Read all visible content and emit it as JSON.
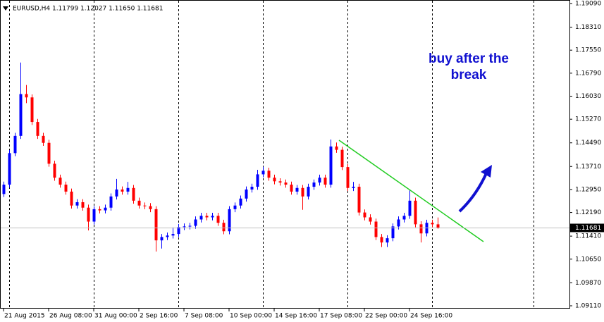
{
  "chart_data": {
    "type": "candlestick",
    "header": "EURUSD,H4  1.11799 1.12027 1.11650 1.11681",
    "annotation": "buy after the break",
    "up_color": "#0000ff",
    "down_color": "#ff0000",
    "price_line": 1.11681,
    "categories": [
      "21 Aug 2015",
      null,
      null,
      null,
      null,
      null,
      null,
      null,
      "26 Aug 08:00",
      null,
      null,
      null,
      null,
      null,
      null,
      null,
      "31 Aug 00:00",
      null,
      null,
      null,
      null,
      null,
      null,
      null,
      "2 Sep 16:00",
      null,
      null,
      null,
      null,
      null,
      null,
      null,
      "7 Sep 08:00",
      null,
      null,
      null,
      null,
      null,
      null,
      null,
      "10 Sep 00:00",
      null,
      null,
      null,
      null,
      null,
      null,
      null,
      "14 Sep 16:00",
      null,
      null,
      null,
      null,
      null,
      null,
      null,
      "17 Sep 08:00",
      null,
      null,
      null,
      null,
      null,
      null,
      null,
      "22 Sep 00:00",
      null,
      null,
      null,
      null,
      null,
      null,
      null,
      "24 Sep 16:00",
      null,
      null,
      null,
      null,
      null
    ],
    "open": [
      1.128,
      1.1311,
      1.1415,
      1.1472,
      1.161,
      1.1599,
      1.1518,
      1.1472,
      1.1449,
      1.138,
      1.1334,
      1.1311,
      1.1288,
      1.1242,
      1.1253,
      1.1235,
      1.1189,
      1.123,
      1.1226,
      1.1235,
      1.1272,
      1.1295,
      1.1288,
      1.13,
      1.1258,
      1.1242,
      1.124,
      1.123,
      1.1127,
      1.1138,
      1.1143,
      1.1148,
      1.1171,
      1.1173,
      1.1175,
      1.1196,
      1.1208,
      1.1203,
      1.1208,
      1.1185,
      1.1157,
      1.123,
      1.1242,
      1.1265,
      1.1295,
      1.1304,
      1.1345,
      1.1357,
      1.1334,
      1.1322,
      1.1318,
      1.1311,
      1.1288,
      1.13,
      1.1272,
      1.1304,
      1.1318,
      1.1334,
      1.1311,
      1.1437,
      1.1426,
      1.1369,
      1.13,
      1.1304,
      1.1219,
      1.1203,
      1.1189,
      1.1138,
      1.112,
      1.1134,
      1.1173,
      1.1196,
      1.1208,
      1.1258,
      1.118,
      1.115,
      1.1185,
      1.11799
    ],
    "high": [
      1.1321,
      1.1425,
      1.1482,
      1.1714,
      1.164,
      1.1609,
      1.1528,
      1.1482,
      1.1459,
      1.139,
      1.1344,
      1.1321,
      1.1298,
      1.1263,
      1.1263,
      1.1245,
      1.124,
      1.124,
      1.1245,
      1.1282,
      1.133,
      1.1305,
      1.132,
      1.131,
      1.1268,
      1.1252,
      1.125,
      1.124,
      1.1148,
      1.1153,
      1.117,
      1.1181,
      1.1183,
      1.1185,
      1.1206,
      1.1218,
      1.1218,
      1.1218,
      1.1218,
      1.1195,
      1.124,
      1.1252,
      1.1275,
      1.1305,
      1.1314,
      1.136,
      1.137,
      1.1367,
      1.1344,
      1.1332,
      1.1328,
      1.1321,
      1.131,
      1.131,
      1.1314,
      1.1328,
      1.1344,
      1.1344,
      1.146,
      1.145,
      1.1436,
      1.1379,
      1.132,
      1.1314,
      1.1229,
      1.1213,
      1.1199,
      1.1148,
      1.1144,
      1.1183,
      1.1206,
      1.1218,
      1.1295,
      1.1268,
      1.119,
      1.1195,
      1.1195,
      1.12027
    ],
    "low": [
      1.127,
      1.1301,
      1.1405,
      1.1462,
      1.158,
      1.1508,
      1.1462,
      1.1439,
      1.137,
      1.1324,
      1.1301,
      1.1278,
      1.1232,
      1.1232,
      1.1225,
      1.116,
      1.1179,
      1.1216,
      1.1216,
      1.1225,
      1.1262,
      1.1278,
      1.1278,
      1.1248,
      1.1232,
      1.123,
      1.122,
      1.109,
      1.11,
      1.1128,
      1.1133,
      1.1138,
      1.1161,
      1.1163,
      1.1165,
      1.1186,
      1.1193,
      1.1193,
      1.1175,
      1.1147,
      1.1147,
      1.122,
      1.1232,
      1.1255,
      1.1285,
      1.1294,
      1.1335,
      1.1324,
      1.1312,
      1.1308,
      1.1301,
      1.1278,
      1.1278,
      1.1228,
      1.1262,
      1.1294,
      1.1308,
      1.1301,
      1.1301,
      1.1416,
      1.1359,
      1.129,
      1.129,
      1.1209,
      1.1193,
      1.1179,
      1.1128,
      1.1105,
      1.1105,
      1.1124,
      1.1163,
      1.1186,
      1.1198,
      1.117,
      1.112,
      1.114,
      1.117,
      1.1165
    ],
    "close": [
      1.1311,
      1.1415,
      1.1472,
      1.161,
      1.1599,
      1.1518,
      1.1472,
      1.1449,
      1.138,
      1.1334,
      1.1311,
      1.1288,
      1.1242,
      1.1253,
      1.1235,
      1.1189,
      1.123,
      1.1226,
      1.1235,
      1.1272,
      1.1295,
      1.1288,
      1.13,
      1.1258,
      1.1242,
      1.124,
      1.123,
      1.1127,
      1.1138,
      1.1143,
      1.1148,
      1.1171,
      1.1173,
      1.1175,
      1.1196,
      1.1208,
      1.1203,
      1.1208,
      1.1185,
      1.1157,
      1.123,
      1.1242,
      1.1265,
      1.1295,
      1.1304,
      1.1345,
      1.1357,
      1.1334,
      1.1322,
      1.1318,
      1.1311,
      1.1288,
      1.13,
      1.1272,
      1.1304,
      1.1318,
      1.1334,
      1.1311,
      1.1437,
      1.1426,
      1.1369,
      1.13,
      1.1304,
      1.1219,
      1.1203,
      1.1189,
      1.1138,
      1.112,
      1.1134,
      1.1173,
      1.1196,
      1.1208,
      1.1258,
      1.118,
      1.115,
      1.1185,
      1.118,
      1.11681
    ],
    "ylim": [
      1.0904,
      1.19206
    ],
    "yticks": [
      {
        "value": 1.1909,
        "label": "1.19090"
      },
      {
        "value": 1.1831,
        "label": "1.18310"
      },
      {
        "value": 1.1755,
        "label": "1.17550"
      },
      {
        "value": 1.1679,
        "label": "1.16790"
      },
      {
        "value": 1.1603,
        "label": "1.16030"
      },
      {
        "value": 1.1527,
        "label": "1.15270"
      },
      {
        "value": 1.1449,
        "label": "1.14490"
      },
      {
        "value": 1.1371,
        "label": "1.13710"
      },
      {
        "value": 1.1295,
        "label": "1.12950"
      },
      {
        "value": 1.1219,
        "label": "1.12190"
      },
      {
        "value": 1.1141,
        "label": "1.11410"
      },
      {
        "value": 1.1065,
        "label": "1.10650"
      },
      {
        "value": 1.0987,
        "label": "1.09870"
      },
      {
        "value": 1.0911,
        "label": "1.09110"
      }
    ]
  }
}
